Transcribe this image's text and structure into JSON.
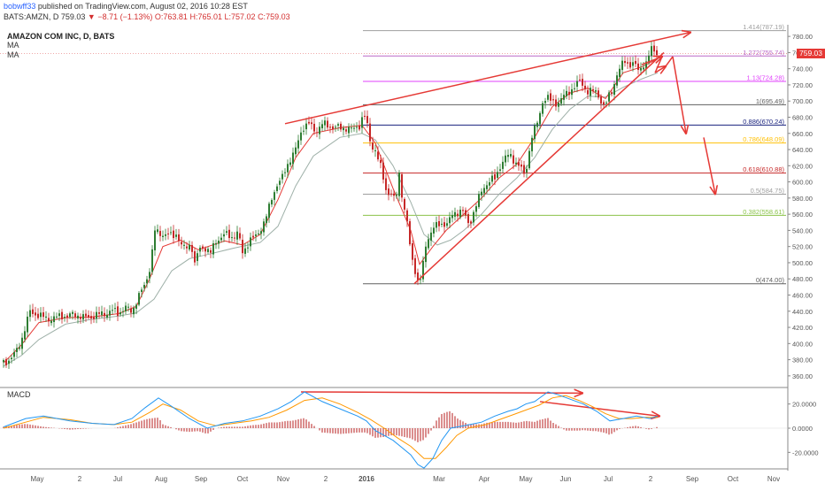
{
  "header": {
    "author": "bobwff33",
    "published": "published on TradingView.com, August 02, 2016 10:28 EST",
    "symbol": "BATS:AMZN, D",
    "last": "759.03",
    "change": "−8.71 (−1.13%)",
    "open": "O:763.81",
    "high": "H:765.01",
    "low": "L:757.02",
    "close": "C:759.03"
  },
  "chart_title": "AMAZON COM INC, D, BATS",
  "ma_labels": [
    "MA",
    "MA"
  ],
  "price_tag": "759.03",
  "macd_label": "MACD",
  "colors": {
    "up": "#2e7d32",
    "down": "#c62828",
    "ma_fast": "#e53935",
    "ma_slow": "#9eb0a8",
    "annotation": "#e53935",
    "macd_line": "#2196f3",
    "signal_line": "#ff9800",
    "hist": "#b71c1c"
  },
  "chart_data": {
    "type": "candlestick",
    "y_range": [
      350,
      790
    ],
    "y_ticks": [
      "780.00",
      "760.00",
      "740.00",
      "720.00",
      "700.00",
      "680.00",
      "660.00",
      "640.00",
      "620.00",
      "600.00",
      "580.00",
      "560.00",
      "540.00",
      "520.00",
      "500.00",
      "480.00",
      "460.00",
      "440.00",
      "420.00",
      "400.00",
      "380.00",
      "360.00"
    ],
    "x_labels": [
      "May",
      "2",
      "Jul",
      "Aug",
      "Sep",
      "Oct",
      "Nov",
      "2",
      "2016",
      "Mar",
      "Apr",
      "May",
      "Jun",
      "Jul",
      "2",
      "Sep",
      "Oct",
      "Nov"
    ],
    "price_path": [
      [
        0,
        377
      ],
      [
        8,
        380
      ],
      [
        15,
        392
      ],
      [
        22,
        410
      ],
      [
        30,
        440
      ],
      [
        40,
        434
      ],
      [
        55,
        430
      ],
      [
        65,
        435
      ],
      [
        72,
        433
      ],
      [
        80,
        437
      ],
      [
        90,
        432
      ],
      [
        100,
        433
      ],
      [
        105,
        435
      ],
      [
        110,
        437
      ],
      [
        118,
        438
      ],
      [
        124,
        441
      ],
      [
        130,
        438
      ],
      [
        138,
        444
      ],
      [
        145,
        440
      ],
      [
        150,
        452
      ],
      [
        160,
        474
      ],
      [
        167,
        500
      ],
      [
        170,
        540
      ],
      [
        175,
        537
      ],
      [
        182,
        535
      ],
      [
        190,
        533
      ],
      [
        196,
        536
      ],
      [
        201,
        520
      ],
      [
        206,
        518
      ],
      [
        212,
        525
      ],
      [
        216,
        497
      ],
      [
        220,
        515
      ],
      [
        226,
        520
      ],
      [
        234,
        512
      ],
      [
        240,
        527
      ],
      [
        250,
        535
      ],
      [
        258,
        532
      ],
      [
        265,
        537
      ],
      [
        270,
        512
      ],
      [
        278,
        528
      ],
      [
        285,
        532
      ],
      [
        292,
        545
      ],
      [
        298,
        560
      ],
      [
        303,
        580
      ],
      [
        308,
        595
      ],
      [
        315,
        605
      ],
      [
        322,
        625
      ],
      [
        330,
        640
      ],
      [
        338,
        668
      ],
      [
        345,
        672
      ],
      [
        352,
        662
      ],
      [
        360,
        672
      ],
      [
        368,
        668
      ],
      [
        376,
        668
      ],
      [
        382,
        665
      ],
      [
        388,
        668
      ],
      [
        395,
        664
      ],
      [
        402,
        670
      ],
      [
        407,
        685
      ],
      [
        410,
        674
      ],
      [
        415,
        645
      ],
      [
        420,
        640
      ],
      [
        426,
        618
      ],
      [
        432,
        590
      ],
      [
        438,
        585
      ],
      [
        443,
        575
      ],
      [
        447,
        610
      ],
      [
        452,
        570
      ],
      [
        456,
        550
      ],
      [
        460,
        510
      ],
      [
        464,
        495
      ],
      [
        468,
        478
      ],
      [
        472,
        482
      ],
      [
        477,
        520
      ],
      [
        481,
        535
      ],
      [
        486,
        545
      ],
      [
        491,
        545
      ],
      [
        496,
        548
      ],
      [
        502,
        550
      ],
      [
        507,
        558
      ],
      [
        512,
        562
      ],
      [
        518,
        567
      ],
      [
        522,
        555
      ],
      [
        526,
        545
      ],
      [
        530,
        560
      ],
      [
        535,
        575
      ],
      [
        541,
        590
      ],
      [
        545,
        597
      ],
      [
        550,
        603
      ],
      [
        556,
        603
      ],
      [
        560,
        618
      ],
      [
        566,
        630
      ],
      [
        572,
        633
      ],
      [
        578,
        625
      ],
      [
        583,
        620
      ],
      [
        588,
        608
      ],
      [
        592,
        623
      ],
      [
        596,
        655
      ],
      [
        600,
        665
      ],
      [
        604,
        675
      ],
      [
        609,
        700
      ],
      [
        614,
        705
      ],
      [
        618,
        700
      ],
      [
        623,
        697
      ],
      [
        628,
        700
      ],
      [
        632,
        705
      ],
      [
        637,
        710
      ],
      [
        643,
        716
      ],
      [
        647,
        720
      ],
      [
        652,
        725
      ],
      [
        656,
        717
      ],
      [
        660,
        712
      ],
      [
        665,
        712
      ],
      [
        670,
        712
      ],
      [
        675,
        700
      ],
      [
        679,
        690
      ],
      [
        683,
        705
      ],
      [
        688,
        715
      ],
      [
        692,
        730
      ],
      [
        697,
        740
      ],
      [
        701,
        752
      ],
      [
        705,
        747
      ],
      [
        709,
        744
      ],
      [
        713,
        745
      ],
      [
        718,
        738
      ],
      [
        722,
        746
      ],
      [
        727,
        745
      ],
      [
        731,
        766
      ],
      [
        735,
        764
      ],
      [
        739,
        759
      ]
    ],
    "ma_fast_path": [
      [
        0,
        376
      ],
      [
        20,
        398
      ],
      [
        40,
        426
      ],
      [
        70,
        432
      ],
      [
        100,
        433
      ],
      [
        130,
        437
      ],
      [
        150,
        446
      ],
      [
        165,
        480
      ],
      [
        180,
        520
      ],
      [
        200,
        528
      ],
      [
        220,
        516
      ],
      [
        250,
        527
      ],
      [
        270,
        522
      ],
      [
        290,
        535
      ],
      [
        310,
        578
      ],
      [
        330,
        630
      ],
      [
        350,
        660
      ],
      [
        380,
        667
      ],
      [
        405,
        670
      ],
      [
        420,
        648
      ],
      [
        440,
        592
      ],
      [
        460,
        540
      ],
      [
        470,
        498
      ],
      [
        485,
        520
      ],
      [
        500,
        540
      ],
      [
        520,
        560
      ],
      [
        540,
        580
      ],
      [
        560,
        605
      ],
      [
        580,
        622
      ],
      [
        600,
        655
      ],
      [
        620,
        693
      ],
      [
        640,
        710
      ],
      [
        660,
        716
      ],
      [
        680,
        703
      ],
      [
        700,
        735
      ],
      [
        720,
        742
      ],
      [
        739,
        752
      ]
    ],
    "ma_slow_path": [
      [
        0,
        372
      ],
      [
        20,
        385
      ],
      [
        40,
        405
      ],
      [
        70,
        424
      ],
      [
        100,
        430
      ],
      [
        130,
        434
      ],
      [
        150,
        438
      ],
      [
        170,
        455
      ],
      [
        190,
        490
      ],
      [
        210,
        505
      ],
      [
        230,
        510
      ],
      [
        260,
        518
      ],
      [
        290,
        525
      ],
      [
        310,
        545
      ],
      [
        330,
        595
      ],
      [
        350,
        632
      ],
      [
        380,
        655
      ],
      [
        405,
        660
      ],
      [
        420,
        652
      ],
      [
        440,
        620
      ],
      [
        460,
        575
      ],
      [
        475,
        535
      ],
      [
        490,
        522
      ],
      [
        505,
        528
      ],
      [
        520,
        540
      ],
      [
        540,
        560
      ],
      [
        560,
        585
      ],
      [
        580,
        605
      ],
      [
        600,
        630
      ],
      [
        620,
        665
      ],
      [
        640,
        690
      ],
      [
        660,
        706
      ],
      [
        680,
        705
      ],
      [
        700,
        717
      ],
      [
        720,
        727
      ],
      [
        739,
        735
      ]
    ],
    "macd_range": [
      -30,
      30
    ],
    "macd_ticks": [
      "20.0000",
      "0.0000",
      "-20.0000"
    ],
    "macd_line_path": [
      [
        0,
        1
      ],
      [
        25,
        8
      ],
      [
        45,
        10
      ],
      [
        75,
        6
      ],
      [
        100,
        4
      ],
      [
        125,
        3
      ],
      [
        145,
        8
      ],
      [
        160,
        17
      ],
      [
        175,
        25
      ],
      [
        190,
        18
      ],
      [
        210,
        8
      ],
      [
        230,
        0
      ],
      [
        250,
        4
      ],
      [
        270,
        6
      ],
      [
        290,
        10
      ],
      [
        310,
        16
      ],
      [
        325,
        22
      ],
      [
        340,
        30
      ],
      [
        360,
        22
      ],
      [
        380,
        16
      ],
      [
        400,
        10
      ],
      [
        410,
        6
      ],
      [
        420,
        -2
      ],
      [
        430,
        -6
      ],
      [
        440,
        -10
      ],
      [
        450,
        -16
      ],
      [
        460,
        -22
      ],
      [
        468,
        -30
      ],
      [
        475,
        -33
      ],
      [
        485,
        -25
      ],
      [
        495,
        -10
      ],
      [
        505,
        0
      ],
      [
        520,
        2
      ],
      [
        540,
        5
      ],
      [
        555,
        10
      ],
      [
        570,
        14
      ],
      [
        580,
        16
      ],
      [
        590,
        20
      ],
      [
        600,
        22
      ],
      [
        615,
        30
      ],
      [
        625,
        28
      ],
      [
        640,
        24
      ],
      [
        655,
        20
      ],
      [
        670,
        14
      ],
      [
        685,
        6
      ],
      [
        700,
        8
      ],
      [
        715,
        10
      ],
      [
        730,
        8
      ],
      [
        739,
        10
      ]
    ],
    "signal_line_path": [
      [
        0,
        0
      ],
      [
        25,
        5
      ],
      [
        45,
        9
      ],
      [
        75,
        7
      ],
      [
        100,
        4
      ],
      [
        125,
        3
      ],
      [
        145,
        5
      ],
      [
        165,
        13
      ],
      [
        180,
        20
      ],
      [
        200,
        15
      ],
      [
        220,
        6
      ],
      [
        240,
        2
      ],
      [
        260,
        4
      ],
      [
        280,
        6
      ],
      [
        300,
        9
      ],
      [
        320,
        15
      ],
      [
        340,
        23
      ],
      [
        360,
        25
      ],
      [
        380,
        20
      ],
      [
        400,
        13
      ],
      [
        415,
        7
      ],
      [
        430,
        0
      ],
      [
        445,
        -8
      ],
      [
        460,
        -15
      ],
      [
        475,
        -25
      ],
      [
        488,
        -25
      ],
      [
        500,
        -16
      ],
      [
        512,
        -6
      ],
      [
        525,
        0
      ],
      [
        545,
        3
      ],
      [
        560,
        7
      ],
      [
        575,
        11
      ],
      [
        590,
        15
      ],
      [
        605,
        19
      ],
      [
        620,
        25
      ],
      [
        635,
        27
      ],
      [
        650,
        23
      ],
      [
        665,
        18
      ],
      [
        680,
        12
      ],
      [
        695,
        8
      ],
      [
        710,
        8
      ],
      [
        725,
        9
      ],
      [
        739,
        9
      ]
    ]
  },
  "fib_levels": [
    {
      "label": "1.414(787.19)",
      "value": 787.19,
      "color": "#9e9e9e"
    },
    {
      "label": "1.272(755.74)",
      "value": 755.74,
      "color": "#ba68c8"
    },
    {
      "label": "1.13(724.28)",
      "value": 724.28,
      "color": "#e040fb"
    },
    {
      "label": "1(695.49)",
      "value": 695.49,
      "color": "#616161"
    },
    {
      "label": "0.886(670.24)",
      "value": 670.24,
      "color": "#1a237e"
    },
    {
      "label": "0.786(648.09)",
      "value": 648.09,
      "color": "#ffc107"
    },
    {
      "label": "0.618(610.88)",
      "value": 610.88,
      "color": "#c62828"
    },
    {
      "label": "0.5(584.75)",
      "value": 584.75,
      "color": "#9e9e9e"
    },
    {
      "label": "0.382(558.61)",
      "value": 558.61,
      "color": "#8bc34a"
    },
    {
      "label": "0(474.00)",
      "value": 474.0,
      "color": "#616161"
    }
  ],
  "annotations": {
    "upper_trend": [
      [
        322,
        672
      ],
      [
        780,
        785
      ]
    ],
    "lower_trend": [
      [
        468,
        474
      ],
      [
        750,
        760
      ]
    ],
    "zigzag": [
      [
        725,
        745
      ],
      [
        748,
        755
      ],
      [
        740,
        735
      ],
      [
        752,
        743
      ],
      [
        760,
        755
      ],
      [
        775,
        660
      ],
      [
        795,
        655
      ],
      [
        808,
        585
      ]
    ],
    "macd_arrow1": [
      [
        340,
        30
      ],
      [
        658,
        29
      ]
    ],
    "macd_arrow2": [
      [
        610,
        22
      ],
      [
        745,
        10
      ]
    ]
  }
}
